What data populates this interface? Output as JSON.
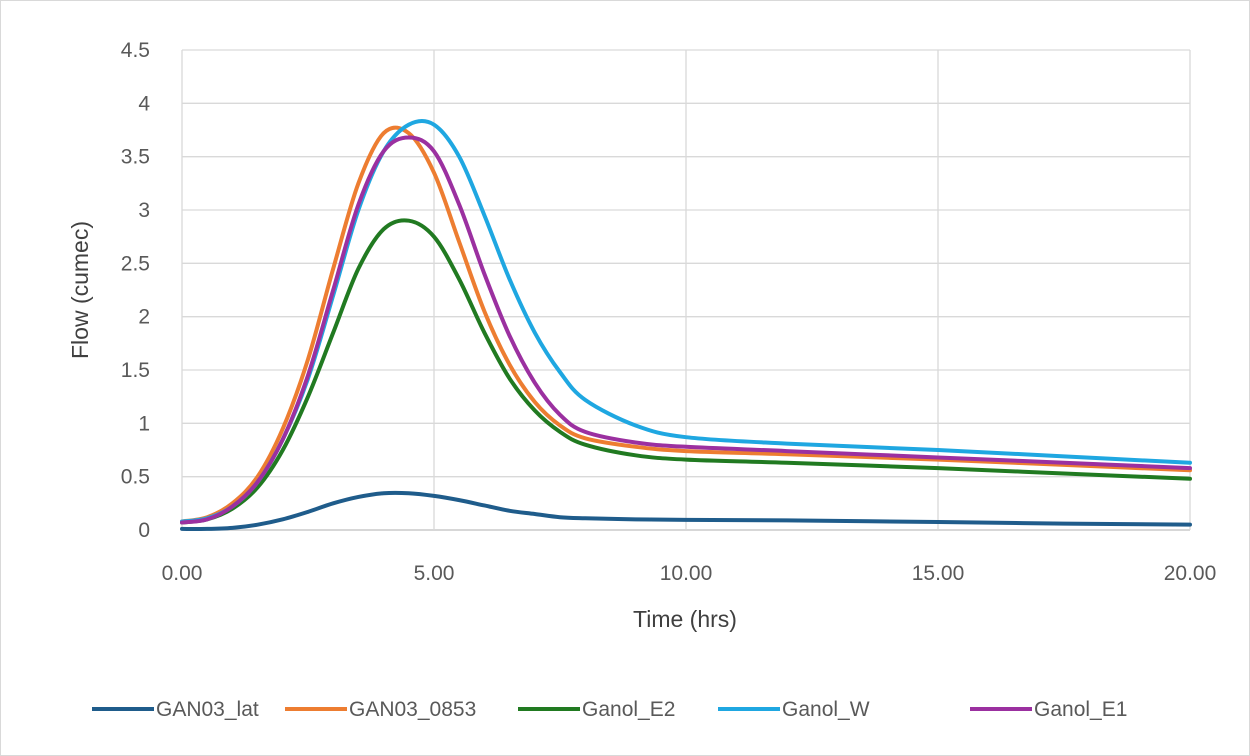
{
  "chart_data": {
    "type": "line",
    "title": "",
    "xlabel": "Time (hrs)",
    "ylabel": "Flow (cumec)",
    "xlim": [
      0,
      20
    ],
    "ylim": [
      0,
      4.5
    ],
    "x_ticks": [
      "0.00",
      "5.00",
      "10.00",
      "15.00",
      "20.00"
    ],
    "y_ticks": [
      "0",
      "0.5",
      "1",
      "1.5",
      "2",
      "2.5",
      "3",
      "3.5",
      "4",
      "4.5"
    ],
    "grid": true,
    "legend_position": "bottom",
    "x": [
      0,
      0.5,
      1,
      1.5,
      2,
      2.5,
      3,
      3.5,
      4,
      4.5,
      5,
      5.5,
      6,
      6.5,
      7,
      7.5,
      8,
      9,
      10,
      12,
      15,
      17.5,
      20
    ],
    "series": [
      {
        "name": "GAN03_lat",
        "color": "#1f5c8b",
        "values": [
          0.01,
          0.01,
          0.02,
          0.05,
          0.1,
          0.17,
          0.25,
          0.31,
          0.345,
          0.345,
          0.32,
          0.28,
          0.23,
          0.18,
          0.15,
          0.12,
          0.11,
          0.1,
          0.095,
          0.09,
          0.075,
          0.06,
          0.05
        ]
      },
      {
        "name": "GAN03_0853",
        "color": "#ed7d31",
        "values": [
          0.08,
          0.12,
          0.25,
          0.5,
          0.95,
          1.6,
          2.45,
          3.25,
          3.72,
          3.72,
          3.35,
          2.7,
          2.05,
          1.55,
          1.2,
          0.98,
          0.86,
          0.78,
          0.74,
          0.71,
          0.66,
          0.61,
          0.56
        ]
      },
      {
        "name": "Ganol_E2",
        "color": "#217a21",
        "values": [
          0.07,
          0.1,
          0.2,
          0.4,
          0.75,
          1.25,
          1.85,
          2.45,
          2.82,
          2.9,
          2.75,
          2.35,
          1.85,
          1.42,
          1.12,
          0.92,
          0.8,
          0.7,
          0.66,
          0.63,
          0.58,
          0.53,
          0.48
        ]
      },
      {
        "name": "Ganol_W",
        "color": "#1fa7e1",
        "values": [
          0.08,
          0.11,
          0.22,
          0.45,
          0.85,
          1.42,
          2.2,
          3.0,
          3.55,
          3.8,
          3.8,
          3.5,
          2.95,
          2.35,
          1.85,
          1.48,
          1.22,
          0.98,
          0.87,
          0.81,
          0.75,
          0.69,
          0.63
        ]
      },
      {
        "name": "Ganol_E1",
        "color": "#9b30a0",
        "values": [
          0.07,
          0.1,
          0.22,
          0.45,
          0.85,
          1.45,
          2.25,
          3.05,
          3.55,
          3.68,
          3.55,
          3.05,
          2.4,
          1.82,
          1.38,
          1.08,
          0.92,
          0.82,
          0.78,
          0.74,
          0.68,
          0.63,
          0.58
        ]
      }
    ]
  }
}
